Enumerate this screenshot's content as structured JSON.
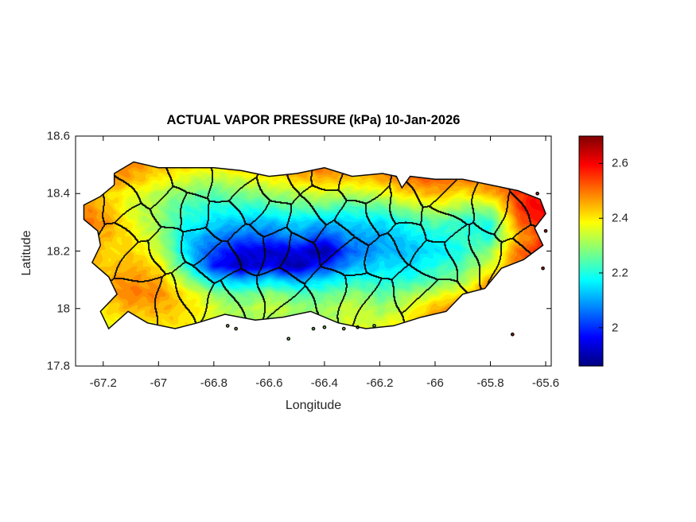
{
  "chart_data": {
    "type": "heatmap",
    "subtype": "filled-contour-geographic-map",
    "title": "ACTUAL VAPOR PRESSURE (kPa) 10-Jan-2026",
    "xlabel": "Longitude",
    "ylabel": "Latitude",
    "units": "kPa",
    "region": "Puerto Rico with municipal boundaries",
    "xlim": [
      -67.3,
      -65.58
    ],
    "ylim": [
      17.8,
      18.6
    ],
    "xticks": [
      -67.2,
      -67.0,
      -66.8,
      -66.6,
      -66.4,
      -66.2,
      -66.0,
      -65.8,
      -65.6
    ],
    "xtick_labels": [
      "-67.2",
      "-67",
      "-66.8",
      "-66.6",
      "-66.4",
      "-66.2",
      "-66",
      "-65.8",
      "-65.6"
    ],
    "yticks": [
      18.6,
      18.4,
      18.2,
      18.0,
      17.8
    ],
    "ytick_labels": [
      "18.6",
      "18.4",
      "18.2",
      "18",
      "17.8"
    ],
    "grid_lines": false,
    "colorbar": {
      "colormap": "jet",
      "position": "right",
      "vmin": 1.86,
      "vmax": 2.7,
      "ticks": [
        2.6,
        2.4,
        2.2,
        2.0
      ],
      "tick_labels": [
        "2.6",
        "2.4",
        "2.2",
        "2"
      ]
    },
    "grid": {
      "comment": "vapor pressure (kPa) sampled on lon/lat grid; rows north-to-south",
      "lon_start": -67.3,
      "lon_step": 0.1,
      "lat_start": 18.55,
      "lat_step": -0.05,
      "values": [
        [
          2.48,
          2.5,
          2.5,
          2.48,
          2.45,
          2.45,
          2.45,
          2.48,
          2.5,
          2.52,
          2.5,
          2.52,
          2.55,
          2.55,
          2.55,
          2.55,
          2.6,
          2.62
        ],
        [
          2.45,
          2.5,
          2.48,
          2.45,
          2.42,
          2.4,
          2.45,
          2.45,
          2.5,
          2.52,
          2.48,
          2.5,
          2.52,
          2.55,
          2.55,
          2.52,
          2.6,
          2.62
        ],
        [
          2.42,
          2.5,
          2.45,
          2.4,
          2.35,
          2.32,
          2.35,
          2.38,
          2.42,
          2.45,
          2.42,
          2.45,
          2.5,
          2.52,
          2.5,
          2.5,
          2.58,
          2.6
        ],
        [
          2.48,
          2.42,
          2.38,
          2.32,
          2.28,
          2.25,
          2.28,
          2.3,
          2.32,
          2.35,
          2.32,
          2.35,
          2.42,
          2.45,
          2.4,
          2.45,
          2.55,
          2.6
        ],
        [
          2.5,
          2.45,
          2.35,
          2.3,
          2.22,
          2.2,
          2.2,
          2.22,
          2.25,
          2.25,
          2.22,
          2.25,
          2.3,
          2.35,
          2.3,
          2.3,
          2.55,
          2.62
        ],
        [
          2.52,
          2.48,
          2.38,
          2.3,
          2.2,
          2.15,
          2.12,
          2.12,
          2.15,
          2.12,
          2.15,
          2.15,
          2.2,
          2.25,
          2.2,
          2.2,
          2.5,
          2.6
        ],
        [
          2.5,
          2.45,
          2.4,
          2.32,
          2.15,
          2.08,
          2.05,
          2.05,
          2.08,
          2.02,
          2.1,
          2.1,
          2.15,
          2.18,
          2.22,
          2.2,
          2.45,
          2.55
        ],
        [
          2.52,
          2.42,
          2.42,
          2.35,
          2.15,
          2.02,
          1.95,
          1.92,
          1.95,
          1.88,
          2.05,
          2.1,
          2.12,
          2.15,
          2.2,
          2.3,
          2.5,
          2.6
        ],
        [
          2.48,
          2.42,
          2.45,
          2.4,
          2.2,
          1.98,
          1.9,
          1.95,
          1.88,
          2.0,
          2.1,
          2.15,
          2.15,
          2.2,
          2.25,
          2.35,
          2.5,
          2.6
        ],
        [
          2.42,
          2.45,
          2.48,
          2.45,
          2.3,
          2.15,
          2.1,
          2.15,
          2.1,
          2.15,
          2.2,
          2.2,
          2.2,
          2.25,
          2.3,
          2.45,
          2.55,
          2.62
        ],
        [
          2.4,
          2.42,
          2.5,
          2.48,
          2.4,
          2.3,
          2.25,
          2.3,
          2.25,
          2.25,
          2.3,
          2.25,
          2.3,
          2.35,
          2.4,
          2.55,
          2.6,
          2.62
        ],
        [
          2.38,
          2.4,
          2.45,
          2.45,
          2.42,
          2.35,
          2.3,
          2.35,
          2.3,
          2.3,
          2.35,
          2.3,
          2.35,
          2.45,
          2.5,
          2.58,
          2.6,
          2.6
        ],
        [
          2.35,
          2.38,
          2.4,
          2.42,
          2.4,
          2.35,
          2.3,
          2.3,
          2.3,
          2.3,
          2.35,
          2.35,
          2.4,
          2.5,
          2.55,
          2.6,
          2.6,
          2.6
        ],
        [
          2.35,
          2.35,
          2.38,
          2.4,
          2.38,
          2.32,
          2.3,
          2.3,
          2.3,
          2.3,
          2.35,
          2.35,
          2.4,
          2.5,
          2.55,
          2.6,
          2.6,
          2.6
        ]
      ]
    },
    "region_outline": [
      [
        -67.16,
        18.47
      ],
      [
        -67.09,
        18.51
      ],
      [
        -67.0,
        18.49
      ],
      [
        -66.9,
        18.49
      ],
      [
        -66.8,
        18.49
      ],
      [
        -66.7,
        18.48
      ],
      [
        -66.6,
        18.46
      ],
      [
        -66.5,
        18.47
      ],
      [
        -66.4,
        18.49
      ],
      [
        -66.3,
        18.46
      ],
      [
        -66.19,
        18.47
      ],
      [
        -66.14,
        18.46
      ],
      [
        -66.12,
        18.42
      ],
      [
        -66.09,
        18.46
      ],
      [
        -66.0,
        18.45
      ],
      [
        -65.9,
        18.45
      ],
      [
        -65.8,
        18.43
      ],
      [
        -65.7,
        18.41
      ],
      [
        -65.62,
        18.38
      ],
      [
        -65.6,
        18.33
      ],
      [
        -65.64,
        18.28
      ],
      [
        -65.61,
        18.22
      ],
      [
        -65.68,
        18.17
      ],
      [
        -65.76,
        18.14
      ],
      [
        -65.82,
        18.07
      ],
      [
        -65.9,
        18.05
      ],
      [
        -65.96,
        17.99
      ],
      [
        -66.05,
        17.97
      ],
      [
        -66.15,
        17.94
      ],
      [
        -66.25,
        17.93
      ],
      [
        -66.35,
        17.95
      ],
      [
        -66.45,
        17.99
      ],
      [
        -66.55,
        17.97
      ],
      [
        -66.65,
        17.96
      ],
      [
        -66.76,
        17.98
      ],
      [
        -66.86,
        17.95
      ],
      [
        -66.94,
        17.93
      ],
      [
        -67.04,
        17.95
      ],
      [
        -67.11,
        17.99
      ],
      [
        -67.18,
        17.93
      ],
      [
        -67.21,
        17.99
      ],
      [
        -67.15,
        18.05
      ],
      [
        -67.18,
        18.11
      ],
      [
        -67.24,
        18.16
      ],
      [
        -67.21,
        18.22
      ],
      [
        -67.22,
        18.27
      ],
      [
        -67.27,
        18.31
      ],
      [
        -67.27,
        18.36
      ],
      [
        -67.21,
        18.39
      ],
      [
        -67.16,
        18.43
      ]
    ],
    "islets": [
      [
        -66.75,
        17.94
      ],
      [
        -66.72,
        17.93
      ],
      [
        -66.53,
        17.895
      ],
      [
        -66.44,
        17.93
      ],
      [
        -66.4,
        17.935
      ],
      [
        -66.33,
        17.93
      ],
      [
        -66.28,
        17.935
      ],
      [
        -66.22,
        17.94
      ],
      [
        -65.72,
        17.91
      ],
      [
        -65.63,
        18.4
      ],
      [
        -65.6,
        18.27
      ],
      [
        -65.61,
        18.14
      ]
    ]
  },
  "colors": {
    "background": "#ffffff",
    "axis": "#000000",
    "tick_text": "#262626",
    "boundary": "#0a0a0a"
  }
}
